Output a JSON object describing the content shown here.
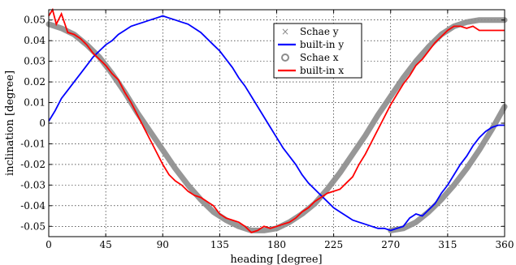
{
  "chart_data": {
    "type": "line",
    "xlabel": "heading [degree]",
    "ylabel": "inclination [degree]",
    "xlim": [
      0,
      360
    ],
    "ylim": [
      -0.055,
      0.055
    ],
    "x_ticks": [
      0,
      45,
      90,
      135,
      180,
      225,
      270,
      315,
      360
    ],
    "y_ticks": [
      0.05,
      0.04,
      0.03,
      0.02,
      0.01,
      0,
      -0.01,
      -0.02,
      -0.03,
      -0.04,
      -0.05
    ],
    "x_tick_labels": [
      "0",
      "45",
      "90",
      "135",
      "180",
      "225",
      "270",
      "315",
      "360"
    ],
    "y_tick_labels": [
      "0.05",
      "0.04",
      "0.03",
      "0.02",
      "0.01",
      "0",
      "-0.01",
      "-0.02",
      "-0.03",
      "-0.04",
      "-0.05"
    ],
    "grid": true,
    "legend_position": "top-center",
    "series": [
      {
        "name": "Schae y",
        "color": "#8c8c8c",
        "marker": "x",
        "x": [
          270,
          280,
          290,
          300,
          310,
          320,
          330,
          340,
          350,
          360
        ],
        "y": [
          -0.052,
          -0.051,
          -0.048,
          -0.043,
          -0.037,
          -0.03,
          -0.022,
          -0.013,
          -0.003,
          0.008
        ]
      },
      {
        "name": "built-in y",
        "color": "#0000ff",
        "x": [
          0,
          5,
          10,
          15,
          20,
          25,
          30,
          35,
          40,
          45,
          50,
          55,
          60,
          65,
          70,
          75,
          80,
          85,
          90,
          95,
          100,
          105,
          110,
          115,
          120,
          125,
          130,
          135,
          140,
          145,
          150,
          155,
          160,
          165,
          170,
          175,
          180,
          185,
          190,
          195,
          200,
          205,
          210,
          215,
          220,
          225,
          230,
          235,
          240,
          245,
          250,
          255,
          260,
          265,
          270,
          275,
          280,
          285,
          290,
          295,
          300,
          305,
          310,
          315,
          320,
          325,
          330,
          335,
          340,
          345,
          350,
          355,
          360
        ],
        "y": [
          0.001,
          0.006,
          0.012,
          0.016,
          0.02,
          0.024,
          0.028,
          0.032,
          0.035,
          0.038,
          0.04,
          0.043,
          0.045,
          0.047,
          0.048,
          0.049,
          0.05,
          0.051,
          0.052,
          0.051,
          0.05,
          0.049,
          0.048,
          0.046,
          0.044,
          0.041,
          0.038,
          0.035,
          0.031,
          0.027,
          0.022,
          0.018,
          0.013,
          0.008,
          0.003,
          -0.002,
          -0.007,
          -0.012,
          -0.016,
          -0.02,
          -0.025,
          -0.029,
          -0.032,
          -0.035,
          -0.038,
          -0.041,
          -0.043,
          -0.045,
          -0.047,
          -0.048,
          -0.049,
          -0.05,
          -0.051,
          -0.051,
          -0.052,
          -0.051,
          -0.05,
          -0.046,
          -0.044,
          -0.045,
          -0.042,
          -0.039,
          -0.034,
          -0.03,
          -0.025,
          -0.02,
          -0.016,
          -0.011,
          -0.007,
          -0.004,
          -0.002,
          -0.001,
          -0.001
        ]
      },
      {
        "name": "Schae x",
        "color": "#8c8c8c",
        "marker": "o",
        "x": [
          0,
          10,
          20,
          30,
          40,
          50,
          60,
          70,
          80,
          90,
          100,
          110,
          120,
          130,
          140,
          150,
          160,
          170,
          180,
          190,
          200,
          210,
          220,
          230,
          240,
          250,
          260,
          270,
          280,
          290,
          300,
          310,
          320,
          330,
          340,
          350,
          360
        ],
        "y": [
          0.048,
          0.046,
          0.043,
          0.038,
          0.032,
          0.024,
          0.015,
          0.005,
          -0.004,
          -0.013,
          -0.022,
          -0.03,
          -0.037,
          -0.043,
          -0.047,
          -0.05,
          -0.052,
          -0.052,
          -0.051,
          -0.048,
          -0.044,
          -0.039,
          -0.032,
          -0.024,
          -0.015,
          -0.006,
          0.004,
          0.013,
          0.022,
          0.03,
          0.037,
          0.043,
          0.047,
          0.049,
          0.05,
          0.05,
          0.05
        ]
      },
      {
        "name": "built-in x",
        "color": "#ff0000",
        "x": [
          0,
          3,
          6,
          10,
          15,
          20,
          25,
          30,
          35,
          40,
          45,
          50,
          55,
          60,
          65,
          70,
          75,
          80,
          85,
          90,
          95,
          100,
          105,
          110,
          115,
          120,
          125,
          130,
          135,
          140,
          145,
          150,
          155,
          160,
          165,
          170,
          175,
          180,
          185,
          190,
          195,
          200,
          205,
          210,
          215,
          220,
          225,
          230,
          235,
          240,
          245,
          250,
          255,
          260,
          265,
          270,
          275,
          280,
          285,
          290,
          295,
          300,
          305,
          310,
          315,
          320,
          325,
          330,
          335,
          340,
          345,
          350,
          355,
          360
        ],
        "y": [
          0.052,
          0.055,
          0.048,
          0.053,
          0.044,
          0.043,
          0.041,
          0.038,
          0.034,
          0.031,
          0.028,
          0.024,
          0.021,
          0.015,
          0.01,
          0.004,
          -0.002,
          -0.008,
          -0.014,
          -0.02,
          -0.025,
          -0.028,
          -0.03,
          -0.033,
          -0.035,
          -0.036,
          -0.038,
          -0.04,
          -0.044,
          -0.046,
          -0.047,
          -0.048,
          -0.05,
          -0.053,
          -0.052,
          -0.05,
          -0.051,
          -0.05,
          -0.049,
          -0.048,
          -0.046,
          -0.043,
          -0.041,
          -0.038,
          -0.036,
          -0.034,
          -0.033,
          -0.032,
          -0.029,
          -0.026,
          -0.02,
          -0.015,
          -0.009,
          -0.003,
          0.003,
          0.009,
          0.014,
          0.019,
          0.023,
          0.028,
          0.031,
          0.035,
          0.039,
          0.042,
          0.045,
          0.047,
          0.047,
          0.046,
          0.047,
          0.045,
          0.045,
          0.045,
          0.045,
          0.045
        ]
      }
    ]
  }
}
